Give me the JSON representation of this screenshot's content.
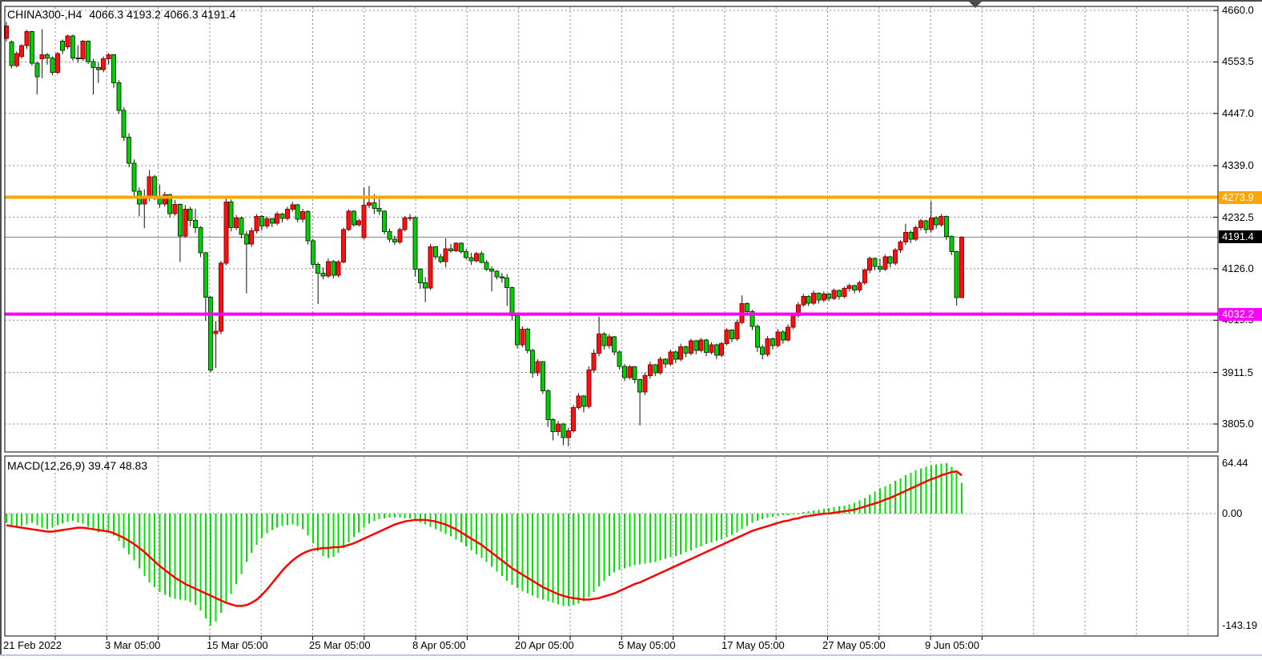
{
  "header": {
    "symbol_period": "CHINA300-,H4",
    "ohlc": "4066.3 4193.2 4066.3 4191.4"
  },
  "indicator": {
    "name": "MACD(12,26,9)",
    "values": "39.47 48.83"
  },
  "price_axis": {
    "ticks": [
      "4660.0",
      "4553.5",
      "4447.0",
      "4339.0",
      "4232.5",
      "4126.0",
      "4019.5",
      "3911.5",
      "3805.0"
    ]
  },
  "macd_axis": {
    "ticks": [
      "64.44",
      "0.00",
      "-143.19"
    ]
  },
  "time_axis": {
    "labels": [
      "21 Feb 2022",
      "3 Mar 05:00",
      "15 Mar 05:00",
      "25 Mar 05:00",
      "8 Apr 05:00",
      "20 Apr 05:00",
      "5 May 05:00",
      "17 May 05:00",
      "27 May 05:00",
      "9 Jun 05:00"
    ]
  },
  "levels": {
    "resistance": {
      "label": "4273.9",
      "price": 4273.9,
      "color": "#ffa500"
    },
    "support": {
      "label": "4032.2",
      "price": 4032.2,
      "color": "#ff00ff"
    },
    "last_price": {
      "label": "4191.4",
      "price": 4191.4,
      "line_color": "#808080",
      "box_color": "#000000"
    }
  },
  "chart_data": {
    "type": "candlestick",
    "symbol": "CHINA300-",
    "timeframe": "H4",
    "title": "CHINA300-,H4 4066.3 4193.2 4066.3 4191.4",
    "price_range": {
      "top": 4660.0,
      "bottom": 3805.0
    },
    "macd_range": {
      "max": 64.44,
      "zero": 0.0,
      "min": -143.19
    },
    "legend": {
      "up_candles": "red",
      "down_candles": "green"
    },
    "colors": {
      "background": "#ffffff",
      "grid": "#8c8c8c",
      "bull_fill": "#f21414",
      "bull_border": "#9e0000",
      "bear_fill": "#00cf00",
      "bear_border": "#0f3d0f",
      "wick": "#111111",
      "histogram": "#00e400",
      "signal_line": "#ff0000",
      "resistance": "#ffa500",
      "support": "#ff00ff",
      "last_price_line": "#808080",
      "frame": "#4d4d4d",
      "bottom_edge": "#bcc7e1"
    },
    "candles": [
      [
        4602,
        4636,
        4596,
        4628
      ],
      [
        4595,
        4598,
        4540,
        4546
      ],
      [
        4546,
        4575,
        4542,
        4571
      ],
      [
        4565,
        4590,
        4560,
        4587
      ],
      [
        4587,
        4620,
        4580,
        4616
      ],
      [
        4616,
        4618,
        4546,
        4551
      ],
      [
        4551,
        4554,
        4486,
        4523
      ],
      [
        4560,
        4621,
        4520,
        4568
      ],
      [
        4568,
        4572,
        4548,
        4562
      ],
      [
        4562,
        4565,
        4526,
        4532
      ],
      [
        4532,
        4574,
        4528,
        4571
      ],
      [
        4596,
        4600,
        4570,
        4577
      ],
      [
        4585,
        4610,
        4580,
        4607
      ],
      [
        4607,
        4610,
        4556,
        4562
      ],
      [
        4562,
        4588,
        4552,
        4560
      ],
      [
        4560,
        4599,
        4556,
        4596
      ],
      [
        4596,
        4598,
        4549,
        4554
      ],
      [
        4554,
        4560,
        4486,
        4542
      ],
      [
        4542,
        4552,
        4510,
        4538
      ],
      [
        4538,
        4565,
        4532,
        4560
      ],
      [
        4560,
        4572,
        4548,
        4568
      ],
      [
        4568,
        4570,
        4500,
        4510
      ],
      [
        4510,
        4516,
        4446,
        4453
      ],
      [
        4453,
        4460,
        4390,
        4398
      ],
      [
        4398,
        4406,
        4336,
        4344
      ],
      [
        4344,
        4352,
        4276,
        4286
      ],
      [
        4286,
        4294,
        4234,
        4260
      ],
      [
        4260,
        4290,
        4210,
        4271
      ],
      [
        4271,
        4330,
        4266,
        4316
      ],
      [
        4316,
        4320,
        4268,
        4276
      ],
      [
        4276,
        4300,
        4252,
        4260
      ],
      [
        4260,
        4285,
        4254,
        4279
      ],
      [
        4279,
        4281,
        4232,
        4240
      ],
      [
        4240,
        4268,
        4236,
        4259
      ],
      [
        4259,
        4261,
        4140,
        4194
      ],
      [
        4194,
        4258,
        4190,
        4249
      ],
      [
        4249,
        4254,
        4214,
        4226
      ],
      [
        4226,
        4250,
        4200,
        4211
      ],
      [
        4211,
        4214,
        4150,
        4159
      ],
      [
        4159,
        4161,
        4018,
        4067
      ],
      [
        4067,
        4069,
        3912,
        3917
      ],
      [
        3992,
        4018,
        3921,
        3997
      ],
      [
        3997,
        4142,
        3991,
        4137
      ],
      [
        4137,
        4272,
        4133,
        4264
      ],
      [
        4264,
        4269,
        4203,
        4211
      ],
      [
        4211,
        4237,
        4206,
        4231
      ],
      [
        4231,
        4234,
        4189,
        4197
      ],
      [
        4197,
        4204,
        4075,
        4177
      ],
      [
        4177,
        4211,
        4171,
        4204
      ],
      [
        4204,
        4239,
        4199,
        4234
      ],
      [
        4234,
        4237,
        4205,
        4214
      ],
      [
        4214,
        4234,
        4209,
        4229
      ],
      [
        4229,
        4231,
        4212,
        4220
      ],
      [
        4220,
        4244,
        4216,
        4239
      ],
      [
        4239,
        4241,
        4222,
        4230
      ],
      [
        4230,
        4254,
        4226,
        4249
      ],
      [
        4249,
        4264,
        4244,
        4258
      ],
      [
        4258,
        4260,
        4222,
        4228
      ],
      [
        4228,
        4250,
        4222,
        4244
      ],
      [
        4244,
        4247,
        4176,
        4184
      ],
      [
        4184,
        4188,
        4128,
        4135
      ],
      [
        4135,
        4139,
        4053,
        4117
      ],
      [
        4117,
        4129,
        4104,
        4111
      ],
      [
        4111,
        4147,
        4107,
        4141
      ],
      [
        4141,
        4144,
        4106,
        4113
      ],
      [
        4113,
        4144,
        4108,
        4140
      ],
      [
        4140,
        4211,
        4137,
        4207
      ],
      [
        4207,
        4249,
        4204,
        4245
      ],
      [
        4245,
        4247,
        4213,
        4217
      ],
      [
        4217,
        4229,
        4213,
        4225
      ],
      [
        4190,
        4294,
        4187,
        4257
      ],
      [
        4257,
        4297,
        4251,
        4262
      ],
      [
        4262,
        4280,
        4239,
        4251
      ],
      [
        4251,
        4270,
        4237,
        4245
      ],
      [
        4245,
        4247,
        4197,
        4203
      ],
      [
        4203,
        4209,
        4181,
        4187
      ],
      [
        4187,
        4194,
        4175,
        4181
      ],
      [
        4181,
        4211,
        4177,
        4207
      ],
      [
        4207,
        4235,
        4203,
        4231
      ],
      [
        4231,
        4239,
        4225,
        4232
      ],
      [
        4232,
        4234,
        4110,
        4125
      ],
      [
        4125,
        4127,
        4084,
        4097
      ],
      [
        4097,
        4109,
        4057,
        4086
      ],
      [
        4086,
        4177,
        4082,
        4171
      ],
      [
        4171,
        4173,
        4145,
        4151
      ],
      [
        4151,
        4157,
        4137,
        4141
      ],
      [
        4141,
        4189,
        4129,
        4167
      ],
      [
        4167,
        4177,
        4159,
        4163
      ],
      [
        4163,
        4181,
        4161,
        4179
      ],
      [
        4179,
        4181,
        4157,
        4161
      ],
      [
        4161,
        4167,
        4145,
        4149
      ],
      [
        4149,
        4159,
        4134,
        4142
      ],
      [
        4142,
        4161,
        4139,
        4157
      ],
      [
        4157,
        4162,
        4137,
        4139
      ],
      [
        4139,
        4144,
        4121,
        4125
      ],
      [
        4125,
        4131,
        4079,
        4121
      ],
      [
        4121,
        4123,
        4104,
        4109
      ],
      [
        4109,
        4117,
        4097,
        4107
      ],
      [
        4107,
        4115,
        4049,
        4087
      ],
      [
        4087,
        4089,
        4019,
        4029
      ],
      [
        4029,
        4033,
        3961,
        3969
      ],
      [
        3969,
        4007,
        3964,
        4001
      ],
      [
        4001,
        4004,
        3951,
        3957
      ],
      [
        3957,
        3961,
        3901,
        3911
      ],
      [
        3911,
        3939,
        3904,
        3934
      ],
      [
        3934,
        3935,
        3867,
        3874
      ],
      [
        3874,
        3877,
        3799,
        3814
      ],
      [
        3814,
        3817,
        3771,
        3789
      ],
      [
        3789,
        3811,
        3781,
        3805
      ],
      [
        3805,
        3807,
        3761,
        3777
      ],
      [
        3777,
        3797,
        3759,
        3791
      ],
      [
        3791,
        3844,
        3787,
        3839
      ],
      [
        3839,
        3869,
        3835,
        3863
      ],
      [
        3863,
        3865,
        3829,
        3841
      ],
      [
        3841,
        3924,
        3837,
        3917
      ],
      [
        3917,
        3959,
        3911,
        3951
      ],
      [
        3951,
        4027,
        3945,
        3991
      ],
      [
        3991,
        3995,
        3959,
        3967
      ],
      [
        3967,
        3991,
        3961,
        3985
      ],
      [
        3985,
        3987,
        3947,
        3954
      ],
      [
        3954,
        3957,
        3917,
        3924
      ],
      [
        3924,
        3929,
        3894,
        3901
      ],
      [
        3901,
        3927,
        3897,
        3923
      ],
      [
        3923,
        3925,
        3889,
        3897
      ],
      [
        3897,
        3899,
        3802,
        3871
      ],
      [
        3871,
        3911,
        3865,
        3905
      ],
      [
        3905,
        3934,
        3899,
        3927
      ],
      [
        3927,
        3929,
        3904,
        3911
      ],
      [
        3911,
        3944,
        3907,
        3939
      ],
      [
        3939,
        3941,
        3921,
        3929
      ],
      [
        3929,
        3959,
        3925,
        3954
      ],
      [
        3954,
        3957,
        3931,
        3939
      ],
      [
        3939,
        3971,
        3935,
        3965
      ],
      [
        3965,
        3967,
        3943,
        3951
      ],
      [
        3951,
        3981,
        3947,
        3977
      ],
      [
        3977,
        3979,
        3949,
        3957
      ],
      [
        3957,
        3983,
        3953,
        3979
      ],
      [
        3979,
        3981,
        3945,
        3953
      ],
      [
        3953,
        3974,
        3949,
        3969
      ],
      [
        3969,
        3971,
        3939,
        3947
      ],
      [
        3947,
        3975,
        3943,
        3971
      ],
      [
        3971,
        4003,
        3967,
        3999
      ],
      [
        3999,
        4001,
        3974,
        3981
      ],
      [
        3981,
        4021,
        3977,
        4015
      ],
      [
        4015,
        4071,
        4011,
        4054
      ],
      [
        4054,
        4057,
        4029,
        4037
      ],
      [
        4037,
        4041,
        3999,
        4007
      ],
      [
        4007,
        4011,
        3954,
        3964
      ],
      [
        3964,
        3969,
        3939,
        3949
      ],
      [
        3949,
        3987,
        3944,
        3981
      ],
      [
        3981,
        3984,
        3959,
        3967
      ],
      [
        3967,
        4001,
        3963,
        3995
      ],
      [
        3995,
        3999,
        3971,
        3979
      ],
      [
        3979,
        4011,
        3975,
        4005
      ],
      [
        4005,
        4034,
        4001,
        4029
      ],
      [
        4029,
        4057,
        4025,
        4051
      ],
      [
        4051,
        4074,
        4047,
        4069
      ],
      [
        4069,
        4071,
        4049,
        4055
      ],
      [
        4055,
        4081,
        4051,
        4075
      ],
      [
        4075,
        4077,
        4054,
        4061
      ],
      [
        4061,
        4079,
        4057,
        4074
      ],
      [
        4074,
        4076,
        4059,
        4065
      ],
      [
        4065,
        4085,
        4061,
        4081
      ],
      [
        4081,
        4083,
        4062,
        4069
      ],
      [
        4069,
        4089,
        4065,
        4085
      ],
      [
        4085,
        4095,
        4079,
        4091
      ],
      [
        4091,
        4093,
        4075,
        4082
      ],
      [
        4082,
        4101,
        4077,
        4097
      ],
      [
        4097,
        4127,
        4093,
        4123
      ],
      [
        4123,
        4151,
        4117,
        4147
      ],
      [
        4147,
        4149,
        4123,
        4131
      ],
      [
        4131,
        4147,
        4119,
        4125
      ],
      [
        4125,
        4155,
        4121,
        4151
      ],
      [
        4151,
        4153,
        4129,
        4137
      ],
      [
        4137,
        4169,
        4133,
        4165
      ],
      [
        4165,
        4185,
        4159,
        4181
      ],
      [
        4181,
        4219,
        4175,
        4201
      ],
      [
        4201,
        4205,
        4179,
        4187
      ],
      [
        4187,
        4215,
        4183,
        4211
      ],
      [
        4211,
        4229,
        4205,
        4225
      ],
      [
        4225,
        4227,
        4199,
        4207
      ],
      [
        4207,
        4266,
        4201,
        4231
      ],
      [
        4231,
        4235,
        4209,
        4217
      ],
      [
        4217,
        4239,
        4213,
        4234
      ],
      [
        4234,
        4236,
        4185,
        4193
      ],
      [
        4193,
        4195,
        4154,
        4161
      ],
      [
        4161,
        4163,
        4050,
        4066
      ],
      [
        4066.3,
        4193.2,
        4066.3,
        4191.4
      ]
    ],
    "macd_histogram": [
      -12,
      -15,
      -18,
      -16,
      -14,
      -12,
      -15,
      -18,
      -20,
      -18,
      -15,
      -13,
      -10,
      -9,
      -11,
      -13,
      -17,
      -21,
      -24,
      -23,
      -22,
      -28,
      -35,
      -44,
      -52,
      -60,
      -70,
      -80,
      -88,
      -94,
      -100,
      -104,
      -107,
      -109,
      -110,
      -111,
      -113,
      -117,
      -124,
      -134,
      -143.19,
      -138,
      -127,
      -115,
      -103,
      -90,
      -77,
      -62,
      -50,
      -40,
      -31,
      -25,
      -21,
      -18,
      -16,
      -15,
      -14,
      -16,
      -20,
      -28,
      -38,
      -48,
      -54,
      -57,
      -55,
      -50,
      -44,
      -37,
      -30,
      -24,
      -18,
      -13,
      -9,
      -7,
      -6,
      -5,
      -5,
      -5,
      -6,
      -6,
      -8,
      -11,
      -14,
      -17,
      -20,
      -23,
      -26,
      -29,
      -33,
      -37,
      -42,
      -47,
      -52,
      -57,
      -62,
      -68,
      -74,
      -80,
      -86,
      -91,
      -95,
      -99,
      -102,
      -105,
      -108,
      -110,
      -112,
      -114,
      -116,
      -118,
      -118,
      -117,
      -115,
      -112,
      -107,
      -100,
      -93,
      -86,
      -80,
      -75,
      -72,
      -70,
      -68,
      -66,
      -65,
      -64,
      -63,
      -62,
      -60,
      -58,
      -56,
      -54,
      -52,
      -49,
      -47,
      -44,
      -42,
      -39,
      -37,
      -35,
      -33,
      -30,
      -27,
      -24,
      -20,
      -16,
      -12,
      -9,
      -7,
      -5,
      -4,
      -3,
      -2,
      -2,
      -1,
      0,
      2,
      3,
      4,
      5,
      6,
      7,
      8,
      9,
      10,
      12,
      14,
      17,
      20,
      24,
      28,
      32,
      35,
      38,
      42,
      45,
      49,
      52,
      55,
      58,
      60,
      62,
      63,
      64,
      64.44,
      60,
      52,
      39.47
    ],
    "macd_signal": [
      -15,
      -16,
      -17,
      -18,
      -19,
      -20,
      -21,
      -22,
      -23,
      -23,
      -22,
      -21,
      -20,
      -19,
      -18,
      -18,
      -19,
      -20,
      -21,
      -22,
      -23,
      -25,
      -28,
      -31,
      -35,
      -39,
      -44,
      -49,
      -55,
      -61,
      -67,
      -72,
      -77,
      -82,
      -86,
      -90,
      -93,
      -96,
      -99,
      -102,
      -105,
      -108,
      -111,
      -114,
      -116,
      -118,
      -118,
      -117,
      -114,
      -110,
      -104,
      -97,
      -89,
      -81,
      -73,
      -66,
      -60,
      -55,
      -51,
      -48,
      -46,
      -45,
      -44,
      -44,
      -43,
      -43,
      -42,
      -40,
      -38,
      -35,
      -32,
      -29,
      -26,
      -23,
      -20,
      -17,
      -14,
      -12,
      -10,
      -9,
      -8,
      -8,
      -8,
      -9,
      -10,
      -12,
      -14,
      -17,
      -20,
      -24,
      -28,
      -32,
      -36,
      -40,
      -45,
      -50,
      -55,
      -60,
      -65,
      -70,
      -74,
      -78,
      -82,
      -86,
      -90,
      -94,
      -97,
      -100,
      -103,
      -105,
      -107,
      -108,
      -109,
      -110,
      -110,
      -109,
      -108,
      -106,
      -104,
      -102,
      -99,
      -96,
      -93,
      -90,
      -88,
      -85,
      -82,
      -79,
      -76,
      -73,
      -70,
      -67,
      -64,
      -61,
      -58,
      -55,
      -52,
      -49,
      -46,
      -43,
      -40,
      -37,
      -34,
      -31,
      -28,
      -25,
      -22,
      -20,
      -18,
      -16,
      -14,
      -12,
      -10,
      -9,
      -7,
      -6,
      -4,
      -3,
      -2,
      -1,
      0,
      0,
      1,
      2,
      3,
      4,
      5,
      7,
      9,
      11,
      13,
      15,
      18,
      20,
      23,
      26,
      29,
      32,
      35,
      38,
      41,
      44,
      46,
      49,
      51,
      53,
      54,
      48.83
    ]
  }
}
